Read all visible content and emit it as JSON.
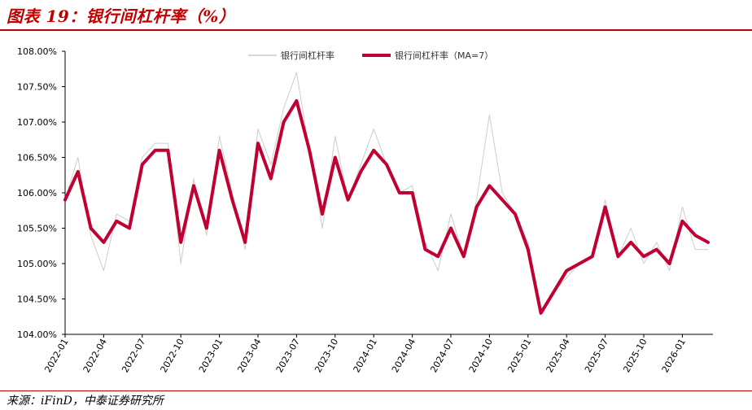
{
  "figure": {
    "title": "图表 19：银行间杠杆率（%）",
    "source": "来源：iFinD，中泰证券研究所"
  },
  "colors": {
    "title_red": "#c00000",
    "raw_series": "#cccccc",
    "ma_series": "#c00032"
  },
  "chart_data": {
    "type": "line",
    "title": "",
    "xlabel": "",
    "ylabel": "",
    "ylim": [
      104.0,
      108.0
    ],
    "y_tick_values": [
      104.0,
      104.5,
      105.0,
      105.5,
      106.0,
      106.5,
      107.0,
      107.5,
      108.0
    ],
    "y_tick_labels": [
      "104.00%",
      "104.50%",
      "105.00%",
      "105.50%",
      "106.00%",
      "106.50%",
      "107.00%",
      "107.50%",
      "108.00%"
    ],
    "x_tick_labels": [
      "2022-01",
      "2022-04",
      "2022-07",
      "2022-10",
      "2023-01",
      "2023-04",
      "2023-07",
      "2023-10",
      "2024-01",
      "2024-04",
      "2024-07",
      "2024-10",
      "2025-01",
      "2025-04",
      "2025-07",
      "2025-10",
      "2026-01"
    ],
    "legend_position": "top",
    "grid": false,
    "series": [
      {
        "name": "银行间杠杆率",
        "style": "thin-gray",
        "x": [
          "2022-01",
          "2022-02",
          "2022-03",
          "2022-04",
          "2022-05",
          "2022-06",
          "2022-07",
          "2022-08",
          "2022-09",
          "2022-10",
          "2022-11",
          "2022-12",
          "2023-01",
          "2023-02",
          "2023-03",
          "2023-04",
          "2023-05",
          "2023-06",
          "2023-07",
          "2023-08",
          "2023-09",
          "2023-10",
          "2023-11",
          "2023-12",
          "2024-01",
          "2024-02",
          "2024-03",
          "2024-04",
          "2024-05",
          "2024-06",
          "2024-07",
          "2024-08",
          "2024-09",
          "2024-10",
          "2024-11",
          "2024-12",
          "2025-01",
          "2025-02",
          "2025-03",
          "2025-04",
          "2025-05",
          "2025-06",
          "2025-07",
          "2025-08",
          "2025-09",
          "2025-10",
          "2025-11",
          "2025-12",
          "2026-01",
          "2026-02",
          "2026-03"
        ],
        "values": [
          105.9,
          106.5,
          105.4,
          104.9,
          105.7,
          105.6,
          106.5,
          106.7,
          106.7,
          105.0,
          106.2,
          105.4,
          106.8,
          106.0,
          105.2,
          106.9,
          106.4,
          107.2,
          107.7,
          106.6,
          105.5,
          106.8,
          105.9,
          106.4,
          106.9,
          106.4,
          106.0,
          106.1,
          105.3,
          104.9,
          105.7,
          105.1,
          105.9,
          107.1,
          106.0,
          105.7,
          105.3,
          104.3,
          104.6,
          104.8,
          105.0,
          105.1,
          105.9,
          105.1,
          105.5,
          105.0,
          105.3,
          104.9,
          105.8,
          105.2,
          105.2
        ]
      },
      {
        "name": "银行间杠杆率（MA=7）",
        "style": "thick-red",
        "x": [
          "2022-01",
          "2022-02",
          "2022-03",
          "2022-04",
          "2022-05",
          "2022-06",
          "2022-07",
          "2022-08",
          "2022-09",
          "2022-10",
          "2022-11",
          "2022-12",
          "2023-01",
          "2023-02",
          "2023-03",
          "2023-04",
          "2023-05",
          "2023-06",
          "2023-07",
          "2023-08",
          "2023-09",
          "2023-10",
          "2023-11",
          "2023-12",
          "2024-01",
          "2024-02",
          "2024-03",
          "2024-04",
          "2024-05",
          "2024-06",
          "2024-07",
          "2024-08",
          "2024-09",
          "2024-10",
          "2024-11",
          "2024-12",
          "2025-01",
          "2025-02",
          "2025-03",
          "2025-04",
          "2025-05",
          "2025-06",
          "2025-07",
          "2025-08",
          "2025-09",
          "2025-10",
          "2025-11",
          "2025-12",
          "2026-01",
          "2026-02",
          "2026-03"
        ],
        "values": [
          105.9,
          106.3,
          105.5,
          105.3,
          105.6,
          105.5,
          106.4,
          106.6,
          106.6,
          105.3,
          106.1,
          105.5,
          106.6,
          105.9,
          105.3,
          106.7,
          106.2,
          107.0,
          107.3,
          106.6,
          105.7,
          106.5,
          105.9,
          106.3,
          106.6,
          106.4,
          106.0,
          106.0,
          105.2,
          105.1,
          105.5,
          105.1,
          105.8,
          106.1,
          105.9,
          105.7,
          105.2,
          104.3,
          104.6,
          104.9,
          105.0,
          105.1,
          105.8,
          105.1,
          105.3,
          105.1,
          105.2,
          105.0,
          105.6,
          105.4,
          105.3
        ]
      }
    ]
  }
}
